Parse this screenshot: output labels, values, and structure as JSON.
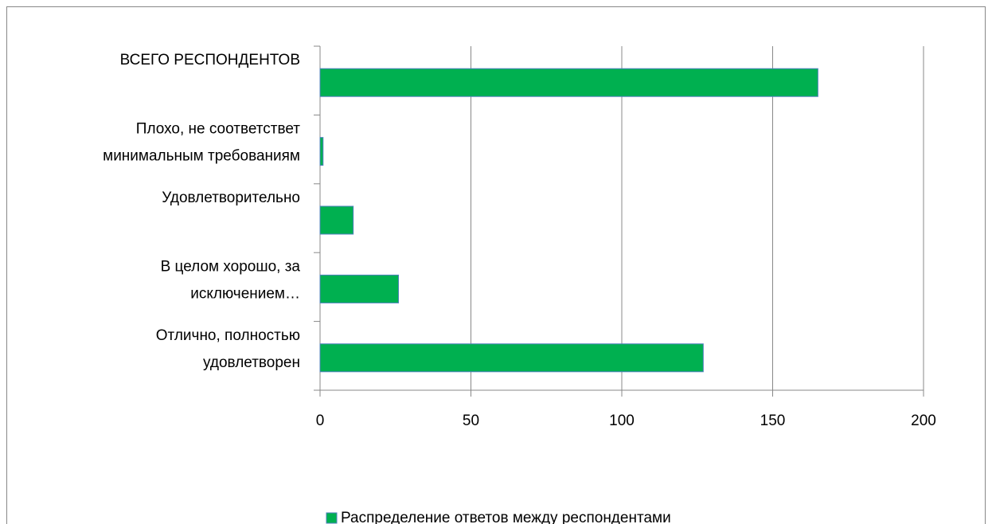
{
  "chart_data": {
    "type": "bar",
    "orientation": "horizontal",
    "categories": [
      "ВСЕГО РЕСПОНДЕНТОВ",
      "Плохо, не соответствет\nминимальным требованиям",
      "Удовлетворительно",
      "В целом хорошо, за\nисключением…",
      "Отлично, полностью\nудовлетворен"
    ],
    "series": [
      {
        "name": "Распределение ответов между респондентами",
        "color": "#00b050",
        "values": [
          165,
          1,
          11,
          26,
          127
        ]
      }
    ],
    "xlim": [
      0,
      200
    ],
    "xticks": [
      0,
      50,
      100,
      150,
      200
    ],
    "grid": true,
    "legend": "bottom"
  }
}
